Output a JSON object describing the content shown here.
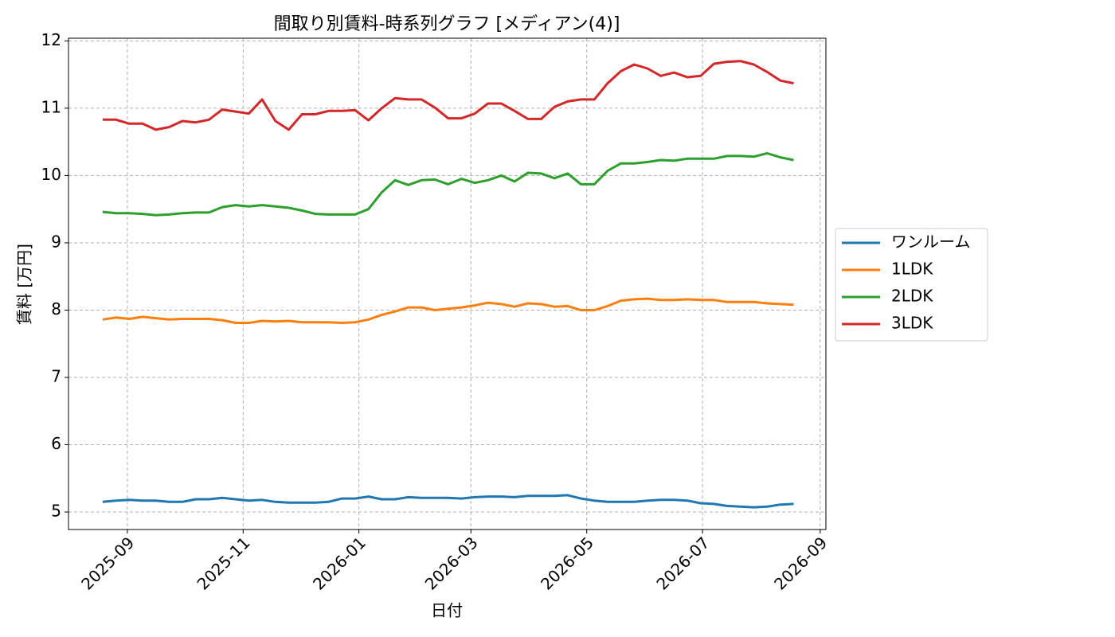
{
  "chart_data": {
    "type": "line",
    "title": "間取り別賃料-時系列グラフ [メディアン(4)]",
    "x_label": "日付",
    "y_label": "賃料 [万円]",
    "x": [
      "2025-08-19",
      "2025-08-26",
      "2025-09-02",
      "2025-09-09",
      "2025-09-16",
      "2025-09-23",
      "2025-09-30",
      "2025-10-07",
      "2025-10-14",
      "2025-10-21",
      "2025-10-28",
      "2025-11-04",
      "2025-11-11",
      "2025-11-18",
      "2025-11-25",
      "2025-12-02",
      "2025-12-09",
      "2025-12-16",
      "2025-12-23",
      "2025-12-30",
      "2026-01-06",
      "2026-01-13",
      "2026-01-20",
      "2026-01-27",
      "2026-02-03",
      "2026-02-10",
      "2026-02-17",
      "2026-02-24",
      "2026-03-03",
      "2026-03-10",
      "2026-03-17",
      "2026-03-24",
      "2026-03-31",
      "2026-04-07",
      "2026-04-14",
      "2026-04-21",
      "2026-04-28",
      "2026-05-05",
      "2026-05-12",
      "2026-05-19",
      "2026-05-26",
      "2026-06-02",
      "2026-06-09",
      "2026-06-16",
      "2026-06-23",
      "2026-06-30",
      "2026-07-07",
      "2026-07-14",
      "2026-07-21",
      "2026-07-28",
      "2026-08-04",
      "2026-08-11",
      "2026-08-18"
    ],
    "series": [
      {
        "name": "ワンルーム",
        "color": "#1f77b4",
        "values": [
          5.15,
          5.17,
          5.18,
          5.17,
          5.17,
          5.15,
          5.15,
          5.19,
          5.19,
          5.21,
          5.19,
          5.17,
          5.18,
          5.15,
          5.14,
          5.14,
          5.14,
          5.15,
          5.2,
          5.2,
          5.23,
          5.19,
          5.19,
          5.22,
          5.21,
          5.21,
          5.21,
          5.2,
          5.22,
          5.23,
          5.23,
          5.22,
          5.24,
          5.24,
          5.24,
          5.25,
          5.2,
          5.17,
          5.15,
          5.15,
          5.15,
          5.17,
          5.18,
          5.18,
          5.17,
          5.13,
          5.12,
          5.09,
          5.08,
          5.07,
          5.08,
          5.11,
          5.12
        ]
      },
      {
        "name": "1LDK",
        "color": "#ff7f0e",
        "values": [
          7.86,
          7.89,
          7.87,
          7.9,
          7.88,
          7.86,
          7.87,
          7.87,
          7.87,
          7.85,
          7.81,
          7.81,
          7.84,
          7.83,
          7.84,
          7.82,
          7.82,
          7.82,
          7.81,
          7.82,
          7.86,
          7.93,
          7.98,
          8.04,
          8.04,
          8.0,
          8.02,
          8.04,
          8.07,
          8.11,
          8.09,
          8.05,
          8.1,
          8.09,
          8.05,
          8.06,
          8.0,
          8.0,
          8.06,
          8.14,
          8.16,
          8.17,
          8.15,
          8.15,
          8.16,
          8.15,
          8.15,
          8.12,
          8.12,
          8.12,
          8.1,
          8.09,
          8.08
        ]
      },
      {
        "name": "2LDK",
        "color": "#2ca02c",
        "values": [
          9.46,
          9.44,
          9.44,
          9.43,
          9.41,
          9.42,
          9.44,
          9.45,
          9.45,
          9.53,
          9.56,
          9.54,
          9.56,
          9.54,
          9.52,
          9.48,
          9.43,
          9.42,
          9.42,
          9.42,
          9.5,
          9.75,
          9.93,
          9.86,
          9.93,
          9.94,
          9.87,
          9.95,
          9.89,
          9.93,
          10.0,
          9.91,
          10.04,
          10.03,
          9.96,
          10.03,
          9.87,
          9.87,
          10.07,
          10.18,
          10.18,
          10.2,
          10.23,
          10.22,
          10.25,
          10.25,
          10.25,
          10.29,
          10.29,
          10.28,
          10.33,
          10.27,
          10.23
        ]
      },
      {
        "name": "3LDK",
        "color": "#d62728",
        "values": [
          10.83,
          10.83,
          10.77,
          10.77,
          10.68,
          10.72,
          10.81,
          10.79,
          10.83,
          10.98,
          10.95,
          10.92,
          11.13,
          10.81,
          10.68,
          10.91,
          10.91,
          10.96,
          10.96,
          10.97,
          10.82,
          11.0,
          11.15,
          11.13,
          11.13,
          11.01,
          10.85,
          10.85,
          10.92,
          11.07,
          11.07,
          10.96,
          10.84,
          10.84,
          11.02,
          11.1,
          11.13,
          11.13,
          11.37,
          11.55,
          11.65,
          11.59,
          11.48,
          11.53,
          11.46,
          11.48,
          11.66,
          11.69,
          11.7,
          11.65,
          11.54,
          11.41,
          11.37
        ]
      }
    ],
    "xlim": [
      "2025-08-01",
      "2026-09-04"
    ],
    "xticks": [
      "2025-09",
      "2025-11",
      "2026-01",
      "2026-03",
      "2026-05",
      "2026-07",
      "2026-09"
    ],
    "ylim": [
      4.74,
      12.04
    ],
    "yticks": [
      5,
      6,
      7,
      8,
      9,
      10,
      11,
      12
    ],
    "grid": true,
    "legend": "right"
  }
}
